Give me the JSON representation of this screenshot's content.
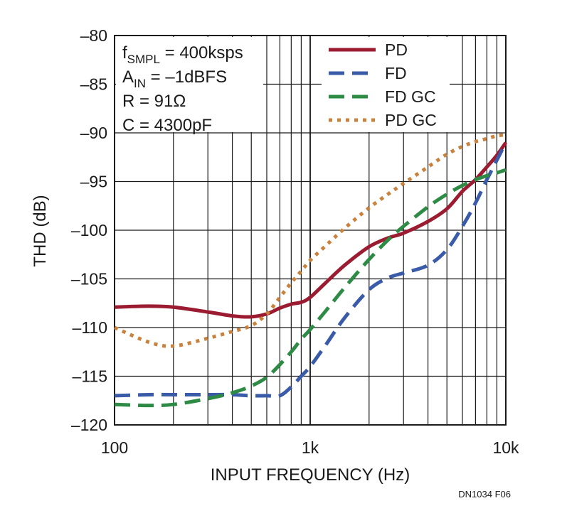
{
  "chart_data": {
    "type": "line",
    "title": "",
    "xlabel": "INPUT FREQUENCY (Hz)",
    "ylabel": "THD (dB)",
    "x_scale": "log",
    "xlim": [
      100,
      10000
    ],
    "ylim": [
      -120,
      -80
    ],
    "x_ticks": [
      100,
      1000,
      10000
    ],
    "x_tick_labels": [
      "100",
      "1k",
      "10k"
    ],
    "y_ticks": [
      -80,
      -85,
      -90,
      -95,
      -100,
      -105,
      -110,
      -115,
      -120
    ],
    "y_tick_labels": [
      "–80",
      "–85",
      "–90",
      "–95",
      "–100",
      "–105",
      "–110",
      "–115",
      "–120"
    ],
    "grid": true,
    "legend_position": "top-right",
    "annotation": {
      "lines": [
        {
          "main": "f",
          "sub": "SMPL",
          "rest": " = 400ksps"
        },
        {
          "main": "A",
          "sub": "IN",
          "rest": " = –1dBFS"
        },
        {
          "main": "R = 91Ω",
          "sub": "",
          "rest": ""
        },
        {
          "main": "C = 4300pF",
          "sub": "",
          "rest": ""
        }
      ]
    },
    "series": [
      {
        "name": "PD",
        "color": "#9b1b30",
        "style": "solid",
        "x": [
          100,
          150,
          200,
          300,
          400,
          500,
          600,
          700,
          800,
          900,
          1000,
          1200,
          1500,
          2000,
          2500,
          3000,
          4000,
          5000,
          6000,
          7000,
          8000,
          9000,
          10000
        ],
        "y": [
          -107.9,
          -107.8,
          -107.9,
          -108.4,
          -108.8,
          -108.9,
          -108.6,
          -108.0,
          -107.6,
          -107.4,
          -106.9,
          -105.4,
          -103.6,
          -101.7,
          -100.8,
          -100.3,
          -99.1,
          -97.8,
          -96.0,
          -94.8,
          -93.5,
          -92.3,
          -91.0
        ]
      },
      {
        "name": "FD",
        "color": "#3a5ba8",
        "style": "dashed",
        "x": [
          100,
          150,
          200,
          300,
          400,
          500,
          600,
          700,
          800,
          900,
          1000,
          1200,
          1500,
          2000,
          2500,
          3000,
          4000,
          5000,
          6000,
          7000,
          8000,
          9000,
          10000
        ],
        "y": [
          -117.0,
          -116.9,
          -116.9,
          -116.9,
          -116.9,
          -117.0,
          -117.0,
          -117.0,
          -116.1,
          -115.0,
          -114.0,
          -111.8,
          -109.0,
          -106.1,
          -104.9,
          -104.4,
          -103.6,
          -102.0,
          -99.6,
          -97.2,
          -94.8,
          -92.8,
          -91.0
        ]
      },
      {
        "name": "FD GC",
        "color": "#2e8b45",
        "style": "dashed",
        "x": [
          100,
          150,
          200,
          300,
          400,
          500,
          600,
          700,
          800,
          900,
          1000,
          1200,
          1500,
          2000,
          2500,
          3000,
          4000,
          5000,
          6000,
          7000,
          8000,
          9000,
          10000
        ],
        "y": [
          -117.9,
          -118.0,
          -117.9,
          -117.3,
          -116.7,
          -116.0,
          -115.1,
          -113.8,
          -112.5,
          -111.2,
          -110.2,
          -108.3,
          -105.9,
          -103.0,
          -101.0,
          -99.6,
          -97.6,
          -96.3,
          -95.4,
          -94.8,
          -94.4,
          -94.1,
          -93.8
        ]
      },
      {
        "name": "PD GC",
        "color": "#c8823d",
        "style": "dotted",
        "x": [
          100,
          150,
          200,
          300,
          400,
          500,
          600,
          700,
          800,
          900,
          1000,
          1200,
          1500,
          2000,
          2500,
          3000,
          4000,
          5000,
          6000,
          7000,
          8000,
          9000,
          10000
        ],
        "y": [
          -110.0,
          -111.5,
          -111.9,
          -111.1,
          -110.4,
          -109.8,
          -108.6,
          -106.9,
          -105.4,
          -104.2,
          -103.1,
          -101.6,
          -99.8,
          -97.7,
          -96.3,
          -95.2,
          -93.5,
          -92.2,
          -91.4,
          -90.9,
          -90.6,
          -90.3,
          -90.2
        ]
      }
    ]
  },
  "figure_id": "DN1034 F06"
}
